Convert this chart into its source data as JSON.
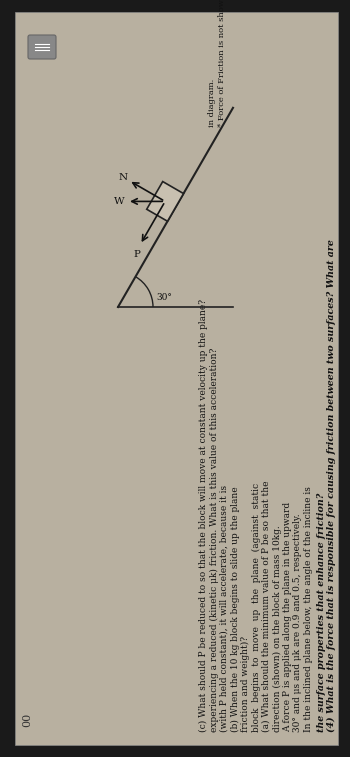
{
  "bg_color": "#1a1a1a",
  "page_color": "#b8b0a0",
  "text_color": "#111111",
  "title_line1": "(4) What is the force that is responsible for causing friction between two surfaces? What are",
  "title_line2": "the surface properties that enhance friction?",
  "body_lines": [
    "In the inclined plane below, the angle of the incline is",
    "30° and μs and μk are 0.9 and 0.5, respectively.",
    "A force P is applied along the plane in the upward",
    "direction (shown) on the block of mass 10kg.",
    "(a) What should the minimum value of P be so that the",
    "block  begins  to  move  up  the  plane  (against  static",
    "friction and weight)?",
    "(b) When the 10 kg block begins to slide up the plane",
    "(with P held constant), it will accelerate, because it is",
    "experiencing a reduced (kinetic μk) friction. What is this value of this acceleration?",
    "(c) What should P be reduced to so that the block will move at constant velocity up the plane?"
  ],
  "note_line1": "* Force of Friction is not shown",
  "note_line2": "in diagram.",
  "angle_label": "30°",
  "N_label": "N",
  "W_label": "W",
  "P_label": "P",
  "page_number": "00",
  "title_fs": 6.8,
  "body_fs": 6.5,
  "note_fs": 6.0
}
